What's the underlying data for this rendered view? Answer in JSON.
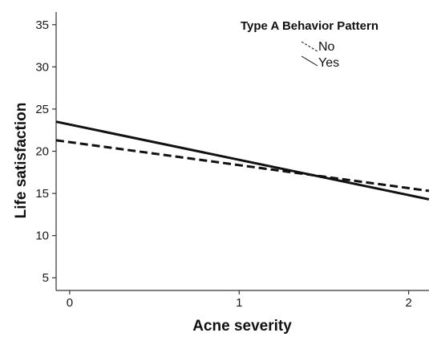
{
  "chart_data": {
    "type": "line",
    "title": "",
    "xlabel": "Acne severity",
    "ylabel": "Life satisfaction",
    "x_ticks": [
      0,
      1,
      2
    ],
    "y_ticks": [
      5,
      10,
      15,
      20,
      25,
      30,
      35
    ],
    "xlim": [
      -0.08,
      2.12
    ],
    "ylim": [
      3.5,
      36.5
    ],
    "grid": false,
    "legend": {
      "title": "Type A Behavior Pattern",
      "position": "top-right"
    },
    "series": [
      {
        "name": "No",
        "style": "dashed",
        "color": "#111111",
        "x": [
          -0.08,
          2.12
        ],
        "y": [
          21.3,
          15.3
        ]
      },
      {
        "name": "Yes",
        "style": "solid",
        "color": "#111111",
        "x": [
          -0.08,
          2.12
        ],
        "y": [
          23.5,
          14.3
        ]
      }
    ]
  }
}
